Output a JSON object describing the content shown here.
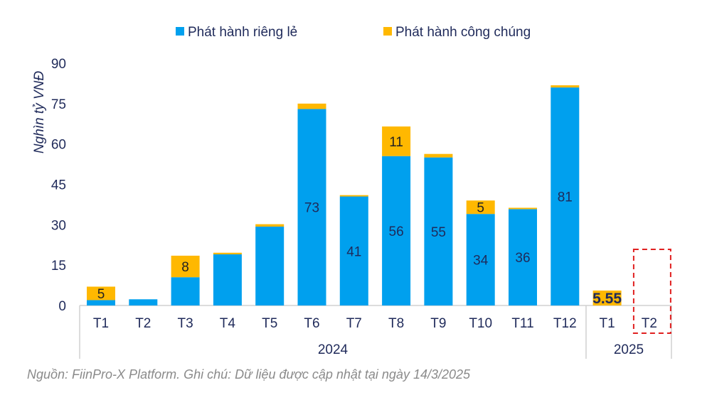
{
  "chart_data": {
    "type": "bar",
    "stacked": true,
    "title": "",
    "ylabel": "Nghìn tỷ VNĐ",
    "xlabel": "",
    "ylim": [
      0,
      90
    ],
    "yticks": [
      0,
      15,
      30,
      45,
      60,
      75,
      90
    ],
    "yticks_labels": [
      "0",
      "15",
      "30",
      "45",
      "60",
      "75",
      "90"
    ],
    "grid": false,
    "legend_position": "top",
    "categories": [
      "T1",
      "T2",
      "T3",
      "T4",
      "T5",
      "T6",
      "T7",
      "T8",
      "T9",
      "T10",
      "T11",
      "T12",
      "T1",
      "T2"
    ],
    "groups": [
      {
        "label": "2024",
        "categories": [
          "T1",
          "T2",
          "T3",
          "T4",
          "T5",
          "T6",
          "T7",
          "T8",
          "T9",
          "T10",
          "T11",
          "T12"
        ]
      },
      {
        "label": "2025",
        "categories": [
          "T1",
          "T2"
        ]
      }
    ],
    "series": [
      {
        "name": "Phát hành riêng lẻ",
        "color": "#00a0ee",
        "values": [
          2,
          2.3,
          10.5,
          19,
          29.3,
          73,
          40.5,
          55.5,
          55,
          34,
          35.8,
          81,
          0,
          0
        ],
        "labels": [
          "",
          "",
          "",
          "",
          "",
          "73",
          "41",
          "56",
          "55",
          "34",
          "36",
          "81",
          "",
          ""
        ]
      },
      {
        "name": "Phát hành công chúng",
        "color": "#ffb800",
        "values": [
          5,
          0,
          8,
          0.6,
          0.9,
          2,
          0.5,
          11,
          1.3,
          5,
          0.5,
          0.8,
          5.55,
          0
        ],
        "labels": [
          "5",
          "",
          "8",
          "",
          "",
          "",
          "",
          "11",
          "",
          "5",
          "",
          "",
          "5.55",
          ""
        ]
      }
    ],
    "annotations": [
      {
        "type": "dashed-box",
        "target_category_index": 13,
        "color": "#e02020"
      }
    ]
  },
  "footer": {
    "source_note": "Nguồn: FiinPro-X Platform. Ghi chú: Dữ liệu được cập nhật tại ngày 14/3/2025"
  }
}
